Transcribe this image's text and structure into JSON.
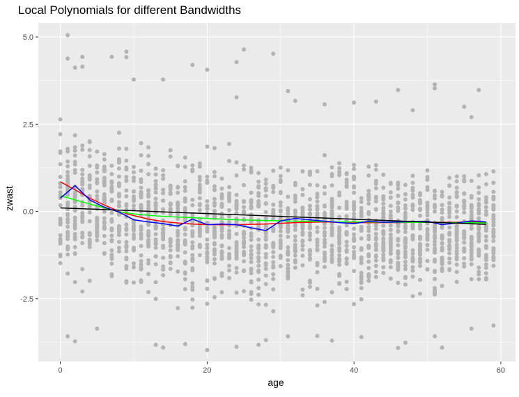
{
  "chart_data": {
    "type": "scatter",
    "title": "Local Polynomials for different Bandwidths",
    "xlabel": "age",
    "ylabel": "zwast",
    "xlim": [
      -3,
      62
    ],
    "ylim": [
      -4.3,
      5.4
    ],
    "x_ticks": [
      0,
      20,
      40,
      60
    ],
    "x_tick_labels": [
      "0",
      "20",
      "40",
      "60"
    ],
    "y_ticks": [
      -2.5,
      0,
      2.5,
      5
    ],
    "y_tick_labels": [
      "-2.5",
      "0.0",
      "2.5",
      "5.0"
    ],
    "grid": true,
    "legend": "none",
    "colors": {
      "panel_background": "#ebebeb",
      "grid_major": "#ffffff",
      "points": "#b3b3b3",
      "tick_text": "#4d4d4d"
    },
    "points": {
      "x_range": [
        0,
        59
      ],
      "y_min": [
        -2.9,
        -2.6,
        -2.7,
        -2.8,
        -2.6,
        -2.7,
        -2.6,
        -2.8,
        -2.9,
        -2.8,
        -2.7,
        -2.9,
        -3.0,
        -3.0,
        -3.1,
        -2.8,
        -3.2,
        -3.3,
        -3.4,
        -2.6,
        -3.5,
        -3.0,
        -3.1,
        -3.2,
        -3.3,
        -3.2,
        -3.4,
        -3.3,
        -3.2,
        -3.1,
        -2.9,
        -3.1,
        -3.0,
        -3.2,
        -3.1,
        -3.0,
        -3.2,
        -3.1,
        -3.3,
        -3.0,
        -2.9,
        -3.1,
        -3.0,
        -3.1,
        -2.9,
        -3.0,
        -2.9,
        -3.0,
        -2.9,
        -3.1,
        -3.0,
        -2.9,
        -2.9,
        -2.8,
        -2.9,
        -2.7,
        -2.8,
        -2.9,
        -2.8,
        -2.9
      ],
      "y_max": [
        3.3,
        2.8,
        2.9,
        3.2,
        2.9,
        2.8,
        3.0,
        2.7,
        2.8,
        3.0,
        2.7,
        2.6,
        2.5,
        2.4,
        2.5,
        2.6,
        2.4,
        2.3,
        2.2,
        2.3,
        2.5,
        2.3,
        2.2,
        2.3,
        2.2,
        2.1,
        2.0,
        2.1,
        2.0,
        1.9,
        2.1,
        2.0,
        2.2,
        2.1,
        2.0,
        2.0,
        1.9,
        2.0,
        1.9,
        1.8,
        2.0,
        1.9,
        1.8,
        1.9,
        1.8,
        1.8,
        1.7,
        1.9,
        1.8,
        1.7,
        1.9,
        1.8,
        1.7,
        1.6,
        1.7,
        1.8,
        1.7,
        1.6,
        1.7,
        1.6
      ],
      "outliers": [
        [
          1,
          5.05
        ],
        [
          1,
          4.38
        ],
        [
          2,
          4.12
        ],
        [
          3,
          4.43
        ],
        [
          3,
          4.15
        ],
        [
          7,
          4.43
        ],
        [
          9,
          4.58
        ],
        [
          9,
          4.42
        ],
        [
          10,
          3.78
        ],
        [
          14,
          3.78
        ],
        [
          18,
          4.2
        ],
        [
          20,
          4.06
        ],
        [
          24,
          4.28
        ],
        [
          25,
          4.64
        ],
        [
          29,
          4.52
        ],
        [
          24,
          3.27
        ],
        [
          31,
          3.45
        ],
        [
          32,
          3.17
        ],
        [
          36,
          3.07
        ],
        [
          40,
          3.12
        ],
        [
          43,
          3.15
        ],
        [
          46,
          3.48
        ],
        [
          51,
          3.64
        ],
        [
          51,
          3.53
        ],
        [
          55,
          3.0
        ],
        [
          57,
          3.48
        ],
        [
          48,
          2.9
        ],
        [
          56,
          2.7
        ],
        [
          1,
          -3.58
        ],
        [
          2,
          -3.72
        ],
        [
          5,
          -3.36
        ],
        [
          13,
          -3.82
        ],
        [
          14,
          -3.9
        ],
        [
          17,
          -3.8
        ],
        [
          20,
          -3.97
        ],
        [
          24,
          -3.88
        ],
        [
          27,
          -3.82
        ],
        [
          28,
          -3.69
        ],
        [
          31,
          -3.58
        ],
        [
          35,
          -3.57
        ],
        [
          37,
          -3.7
        ],
        [
          41,
          -3.6
        ],
        [
          46,
          -3.91
        ],
        [
          47,
          -3.76
        ],
        [
          52,
          -3.9
        ],
        [
          51,
          -3.58
        ],
        [
          56,
          -3.36
        ],
        [
          59,
          -3.27
        ]
      ]
    },
    "series": [
      {
        "color": "#ff0000",
        "x": [
          0,
          2,
          4,
          6,
          8,
          10,
          12,
          14,
          16,
          18,
          20,
          22,
          24,
          26,
          28,
          30,
          32,
          34,
          36,
          38,
          40,
          42,
          44,
          46,
          48,
          50,
          52,
          54,
          56,
          58
        ],
        "y": [
          0.85,
          0.62,
          0.38,
          0.18,
          0.0,
          -0.12,
          -0.22,
          -0.29,
          -0.33,
          -0.36,
          -0.38,
          -0.38,
          -0.38,
          -0.37,
          -0.36,
          -0.34,
          -0.32,
          -0.31,
          -0.3,
          -0.31,
          -0.32,
          -0.32,
          -0.32,
          -0.32,
          -0.31,
          -0.31,
          -0.31,
          -0.31,
          -0.3,
          -0.31
        ]
      },
      {
        "color": "#00ff00",
        "x": [
          0,
          2,
          4,
          6,
          8,
          10,
          12,
          14,
          16,
          18,
          20,
          22,
          24,
          26,
          28,
          30,
          32,
          34,
          36,
          38,
          40,
          42,
          44,
          46,
          48,
          50,
          52,
          54,
          56,
          58
        ],
        "y": [
          0.45,
          0.33,
          0.21,
          0.1,
          -0.01,
          -0.07,
          -0.11,
          -0.14,
          -0.16,
          -0.18,
          -0.2,
          -0.22,
          -0.24,
          -0.25,
          -0.26,
          -0.27,
          -0.28,
          -0.28,
          -0.29,
          -0.3,
          -0.3,
          -0.3,
          -0.31,
          -0.31,
          -0.31,
          -0.31,
          -0.32,
          -0.32,
          -0.32,
          -0.33
        ]
      },
      {
        "color": "#0000ff",
        "x": [
          0,
          2,
          4,
          6,
          8,
          10,
          12,
          14,
          16,
          18,
          20,
          22,
          24,
          26,
          28,
          30,
          32,
          34,
          36,
          38,
          40,
          42,
          44,
          46,
          48,
          50,
          52,
          54,
          56,
          58
        ],
        "y": [
          0.38,
          0.74,
          0.33,
          0.12,
          -0.02,
          -0.24,
          -0.3,
          -0.35,
          -0.42,
          -0.22,
          -0.38,
          -0.36,
          -0.38,
          -0.47,
          -0.55,
          -0.27,
          -0.2,
          -0.24,
          -0.28,
          -0.32,
          -0.35,
          -0.28,
          -0.31,
          -0.3,
          -0.29,
          -0.28,
          -0.38,
          -0.33,
          -0.27,
          -0.3
        ]
      },
      {
        "color": "#000000",
        "x": [
          0,
          58
        ],
        "y": [
          0.1,
          -0.37
        ]
      }
    ]
  }
}
